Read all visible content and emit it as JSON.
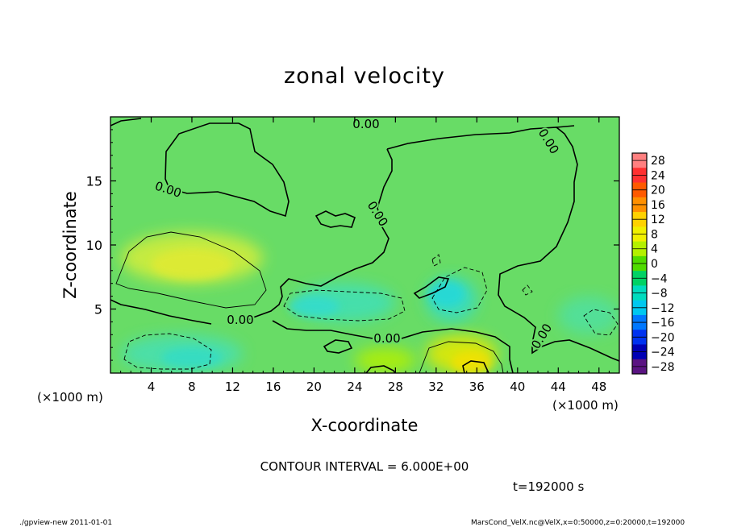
{
  "chart_data": {
    "type": "heatmap",
    "title": "zonal velocity",
    "xlabel": "X-coordinate",
    "ylabel": "Z-coordinate",
    "x_unit_label": "(×1000 m)",
    "y_unit_label": "(×1000 m)",
    "xlim": [
      0,
      50
    ],
    "ylim": [
      0,
      20
    ],
    "x_ticks": [
      "4",
      "8",
      "12",
      "16",
      "20",
      "24",
      "28",
      "32",
      "36",
      "40",
      "44",
      "48"
    ],
    "y_ticks": [
      "5",
      "10",
      "15"
    ],
    "colorbar": {
      "labels": [
        "28",
        "24",
        "20",
        "16",
        "12",
        "8",
        "4",
        "0",
        "−4",
        "−8",
        "−12",
        "−16",
        "−20",
        "−24",
        "−28"
      ],
      "colors": [
        "#ff8080",
        "#ff3030",
        "#ff5a00",
        "#ff9000",
        "#ffd200",
        "#f0f000",
        "#b4f000",
        "#50dc00",
        "#00d264",
        "#00dcbe",
        "#00c8f0",
        "#0078ff",
        "#0032f0",
        "#0000b4",
        "#5a1482"
      ]
    },
    "contour_labels": [
      "0.00",
      "0.00",
      "0.00",
      "0.00",
      "0.00",
      "0.00",
      "0.00"
    ],
    "contour_interval_text": "CONTOUR INTERVAL = 6.000E+00",
    "time_text": "t=192000 s",
    "regions": [
      {
        "kind": "positive",
        "level": 7,
        "x": [
          1,
          15
        ],
        "z": [
          7,
          11
        ],
        "color": "#d6ee3a"
      },
      {
        "kind": "positive",
        "level": 10,
        "x": [
          31,
          38
        ],
        "z": [
          0,
          3
        ],
        "color": "#e6e800"
      },
      {
        "kind": "positive",
        "level": 4,
        "x": [
          24,
          30
        ],
        "z": [
          0,
          2
        ],
        "color": "#b4f000"
      },
      {
        "kind": "negative",
        "level": -6,
        "x": [
          1,
          13
        ],
        "z": [
          0,
          3
        ],
        "color": "#46e0b4"
      },
      {
        "kind": "negative",
        "level": -6,
        "x": [
          18,
          28
        ],
        "z": [
          4,
          7
        ],
        "color": "#40e0b8"
      },
      {
        "kind": "negative",
        "level": -8,
        "x": [
          31,
          36
        ],
        "z": [
          4,
          7.5
        ],
        "color": "#36dcc8"
      },
      {
        "kind": "negative",
        "level": -4,
        "x": [
          44,
          50
        ],
        "z": [
          3,
          6
        ],
        "color": "#50e0a0"
      }
    ]
  },
  "footer": {
    "left": "./gpview-new   2011-01-01",
    "right": "MarsCond_VelX.nc@VelX,x=0:50000,z=0:20000,t=192000"
  }
}
